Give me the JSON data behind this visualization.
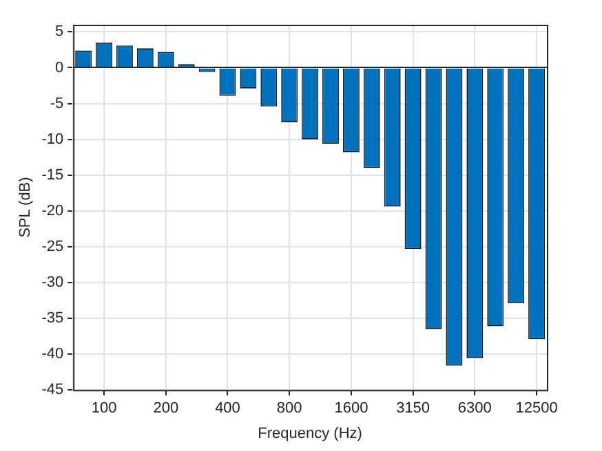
{
  "chart_data": {
    "type": "bar",
    "xlabel": "Frequency (Hz)",
    "ylabel": "SPL (dB)",
    "categories": [
      null,
      "100",
      null,
      null,
      "200",
      null,
      null,
      "400",
      null,
      null,
      "800",
      null,
      null,
      "1600",
      null,
      null,
      "3150",
      null,
      null,
      "6300",
      null,
      null,
      "12500"
    ],
    "values": [
      2.4,
      3.5,
      3.1,
      2.7,
      2.2,
      0.5,
      -0.6,
      -3.9,
      -2.9,
      -5.4,
      -7.6,
      -10,
      -10.6,
      -11.8,
      -14,
      -19.4,
      -25.3,
      -36.5,
      -41.6,
      -40.6,
      -36.1,
      -32.9,
      -37.9
    ],
    "color": "#0072bd",
    "ylim": [
      -45,
      6
    ],
    "yticks": [
      -45,
      -40,
      -35,
      -30,
      -25,
      -20,
      -15,
      -10,
      -5,
      0,
      5
    ],
    "grid": true
  }
}
